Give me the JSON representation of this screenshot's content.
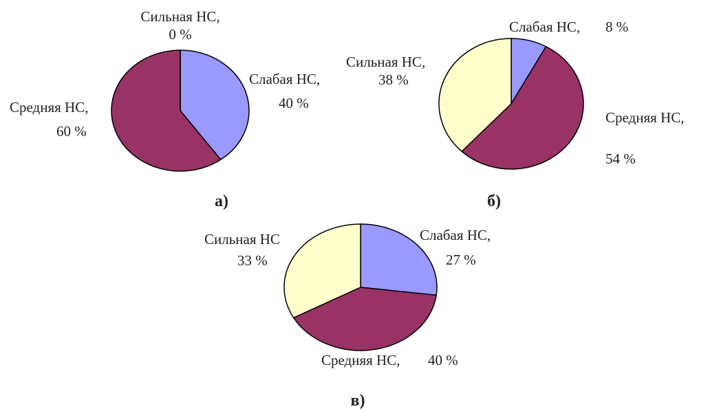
{
  "colors": {
    "weak": "#9999ff",
    "medium": "#993366",
    "strong": "#ffffcc",
    "outline": "#000000"
  },
  "chart_data": [
    {
      "type": "pie",
      "panel_label": "а)",
      "slices": [
        {
          "name": "Слабая НС,",
          "value": 40,
          "label_value": "40 %"
        },
        {
          "name": "Средняя НС,",
          "value": 60,
          "label_value": "60 %"
        },
        {
          "name": "Сильная НС,",
          "value": 0,
          "label_value": "0 %"
        }
      ]
    },
    {
      "type": "pie",
      "panel_label": "б)",
      "slices": [
        {
          "name": "Слабая НС,",
          "value": 8,
          "label_value": "8 %"
        },
        {
          "name": "Средняя НС,",
          "value": 54,
          "label_value": "54 %"
        },
        {
          "name": "Сильная НС,",
          "value": 38,
          "label_value": "38 %"
        }
      ]
    },
    {
      "type": "pie",
      "panel_label": "в)",
      "slices": [
        {
          "name": "Слабая НС,",
          "value": 27,
          "label_value": "27 %"
        },
        {
          "name": "Средняя НС,",
          "value": 40,
          "label_value": "40 %"
        },
        {
          "name": "Сильная НС",
          "value": 33,
          "label_value": "33 %"
        }
      ]
    }
  ]
}
